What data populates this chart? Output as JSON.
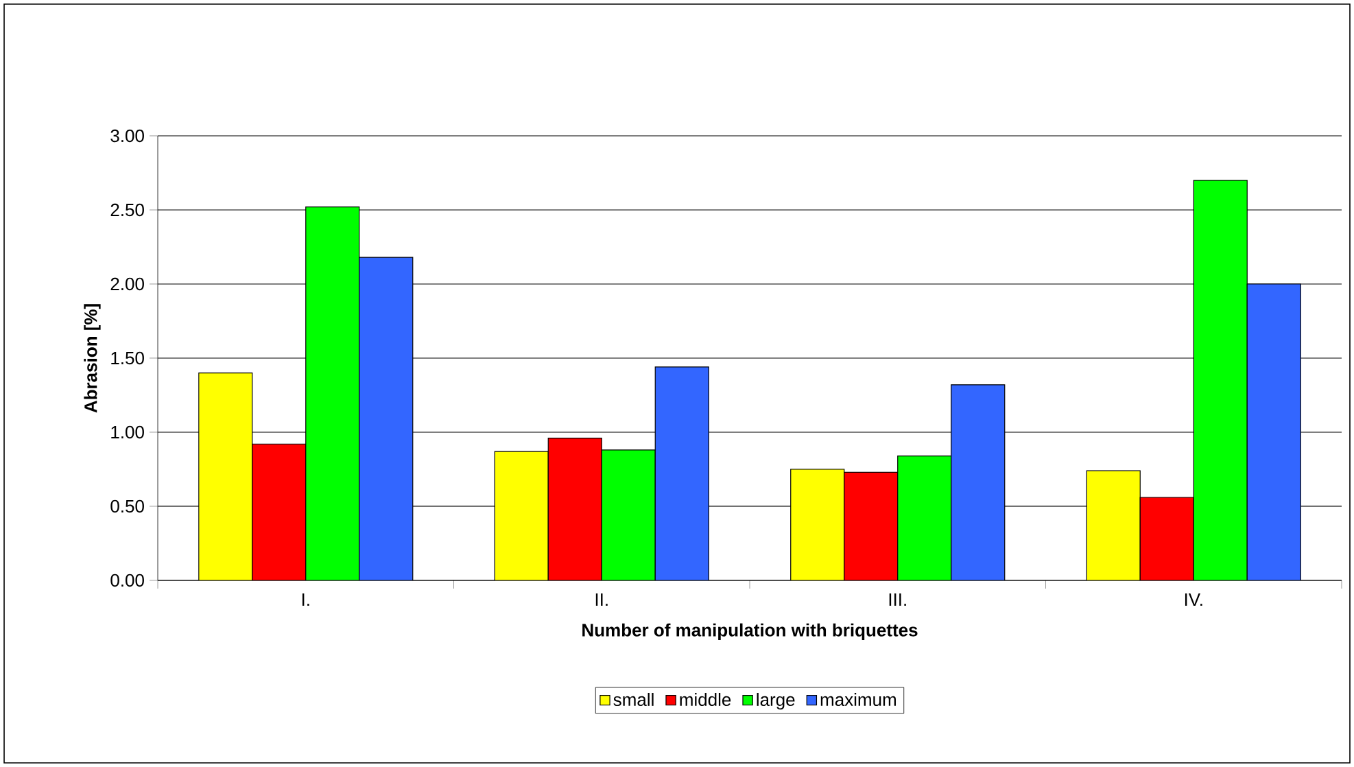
{
  "chart_data": {
    "type": "bar",
    "xlabel": "Number of manipulation with briquettes",
    "ylabel": "Abrasion [%]",
    "categories": [
      "I.",
      "II.",
      "III.",
      "IV."
    ],
    "series": [
      {
        "name": "small",
        "color": "#ffff00",
        "values": [
          1.4,
          0.87,
          0.75,
          0.74
        ]
      },
      {
        "name": "middle",
        "color": "#ff0000",
        "values": [
          0.92,
          0.96,
          0.73,
          0.56
        ]
      },
      {
        "name": "large",
        "color": "#00ff00",
        "values": [
          2.52,
          0.88,
          0.84,
          2.7
        ]
      },
      {
        "name": "maximum",
        "color": "#3366ff",
        "values": [
          2.18,
          1.44,
          1.32,
          2.0
        ]
      }
    ],
    "ylim": [
      0,
      3
    ],
    "yticks": [
      {
        "value": 0,
        "label": "0.00"
      },
      {
        "value": 0.5,
        "label": "0.50"
      },
      {
        "value": 1,
        "label": "1.00"
      },
      {
        "value": 1.5,
        "label": "1.50"
      },
      {
        "value": 2,
        "label": "2.00"
      },
      {
        "value": 2.5,
        "label": "2.50"
      },
      {
        "value": 3,
        "label": "3.00"
      }
    ],
    "grid": "y",
    "legend": "bottom"
  }
}
